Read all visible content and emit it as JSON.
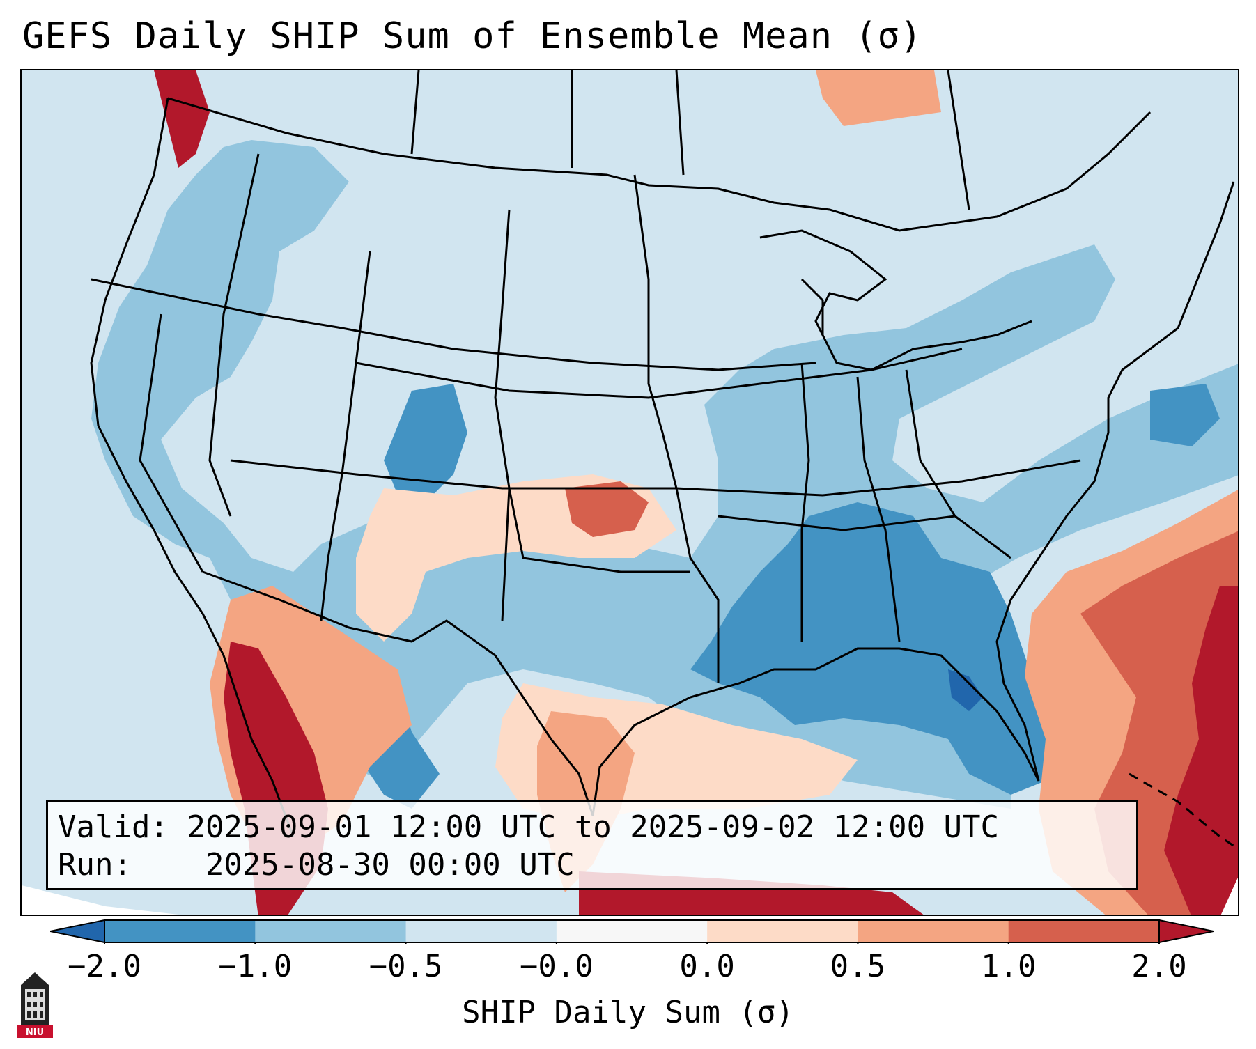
{
  "title": "GEFS Daily SHIP Sum of Ensemble Mean (σ)",
  "info": {
    "valid_label": "Valid:",
    "valid_value": "2025-09-01 12:00 UTC to 2025-09-02 12:00 UTC",
    "run_label": "Run:",
    "run_value": "2025-08-30 00:00 UTC"
  },
  "colorbar": {
    "label": "SHIP Daily Sum (σ)",
    "ticks": [
      "−2.0",
      "−1.0",
      "−0.5",
      "−0.0",
      "0.0",
      "0.5",
      "1.0",
      "2.0"
    ],
    "colors": [
      "#4393c3",
      "#92c5de",
      "#d1e5f0",
      "#f7f7f7",
      "#fddbc7",
      "#f4a582",
      "#d6604d"
    ],
    "under_color": "#2166ac",
    "over_color": "#b2182b"
  },
  "logo": {
    "text": "NIU"
  },
  "icons": {
    "logo": "niu-building-icon"
  }
}
